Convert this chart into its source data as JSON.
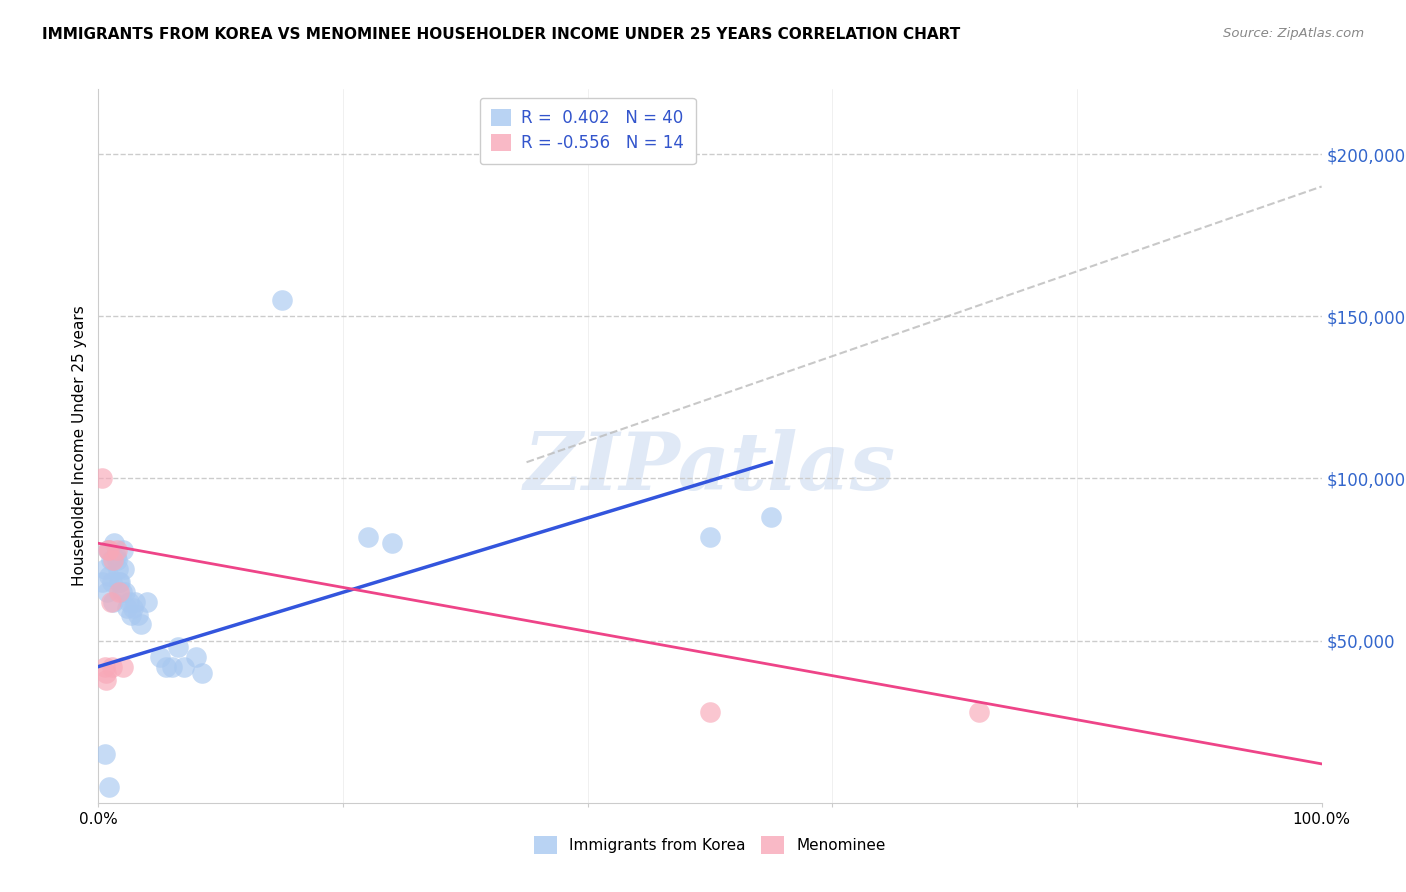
{
  "title": "IMMIGRANTS FROM KOREA VS MENOMINEE HOUSEHOLDER INCOME UNDER 25 YEARS CORRELATION CHART",
  "source": "Source: ZipAtlas.com",
  "ylabel": "Householder Income Under 25 years",
  "xlim": [
    0,
    1.0
  ],
  "ylim": [
    0,
    220000
  ],
  "yticks": [
    0,
    50000,
    100000,
    150000,
    200000
  ],
  "ytick_labels": [
    "",
    "$50,000",
    "$100,000",
    "$150,000",
    "$200,000"
  ],
  "blue_color": "#A8C8F0",
  "pink_color": "#F8A8B8",
  "blue_line_color": "#3355DD",
  "pink_line_color": "#EE4488",
  "dashed_line_color": "#BBBBBB",
  "watermark_color": "#C8D8F0",
  "background_color": "#FFFFFF",
  "grid_color": "#CCCCCC",
  "blue_dots": [
    [
      0.003,
      68000
    ],
    [
      0.005,
      72000
    ],
    [
      0.007,
      65000
    ],
    [
      0.008,
      78000
    ],
    [
      0.009,
      70000
    ],
    [
      0.01,
      75000
    ],
    [
      0.011,
      68000
    ],
    [
      0.012,
      62000
    ],
    [
      0.013,
      80000
    ],
    [
      0.014,
      76000
    ],
    [
      0.015,
      75000
    ],
    [
      0.016,
      72000
    ],
    [
      0.017,
      68000
    ],
    [
      0.018,
      68000
    ],
    [
      0.019,
      65000
    ],
    [
      0.02,
      78000
    ],
    [
      0.021,
      72000
    ],
    [
      0.022,
      65000
    ],
    [
      0.023,
      60000
    ],
    [
      0.025,
      62000
    ],
    [
      0.027,
      58000
    ],
    [
      0.028,
      60000
    ],
    [
      0.03,
      62000
    ],
    [
      0.032,
      58000
    ],
    [
      0.035,
      55000
    ],
    [
      0.04,
      62000
    ],
    [
      0.05,
      45000
    ],
    [
      0.055,
      42000
    ],
    [
      0.06,
      42000
    ],
    [
      0.065,
      48000
    ],
    [
      0.07,
      42000
    ],
    [
      0.08,
      45000
    ],
    [
      0.085,
      40000
    ],
    [
      0.15,
      155000
    ],
    [
      0.22,
      82000
    ],
    [
      0.24,
      80000
    ],
    [
      0.5,
      82000
    ],
    [
      0.55,
      88000
    ],
    [
      0.005,
      15000
    ],
    [
      0.009,
      5000
    ]
  ],
  "pink_dots": [
    [
      0.003,
      100000
    ],
    [
      0.005,
      42000
    ],
    [
      0.006,
      38000
    ],
    [
      0.008,
      78000
    ],
    [
      0.009,
      78000
    ],
    [
      0.01,
      62000
    ],
    [
      0.012,
      75000
    ],
    [
      0.015,
      78000
    ],
    [
      0.017,
      65000
    ],
    [
      0.02,
      42000
    ],
    [
      0.5,
      28000
    ],
    [
      0.72,
      28000
    ],
    [
      0.006,
      40000
    ],
    [
      0.011,
      42000
    ]
  ],
  "blue_trendline_x": [
    0.0,
    0.55
  ],
  "blue_trendline_y": [
    42000,
    105000
  ],
  "pink_trendline_x": [
    0.0,
    1.0
  ],
  "pink_trendline_y": [
    80000,
    12000
  ],
  "dashed_trendline_x": [
    0.35,
    1.0
  ],
  "dashed_trendline_y": [
    105000,
    190000
  ],
  "legend_r1_label": "R =  0.402   N = 40",
  "legend_r2_label": "R = -0.556   N = 14",
  "legend_bottom_1": "Immigrants from Korea",
  "legend_bottom_2": "Menominee"
}
